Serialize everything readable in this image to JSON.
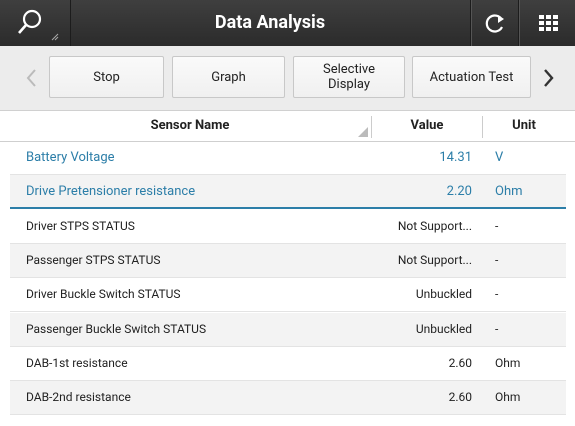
{
  "header": {
    "title": "Data Analysis"
  },
  "toolbar": {
    "buttons": [
      "Stop",
      "Graph",
      "Selective Display",
      "Actuation Test"
    ]
  },
  "table": {
    "columns": [
      "Sensor Name",
      "Value",
      "Unit"
    ],
    "rows": [
      [
        "Battery Voltage",
        "14.31",
        "V"
      ],
      [
        "Drive Pretensioner resistance",
        "2.20",
        "Ohm"
      ],
      [
        "Driver STPS STATUS",
        "Not Support...",
        "-"
      ],
      [
        "Passenger STPS STATUS",
        "Not Support...",
        "-"
      ],
      [
        "Driver Buckle Switch STATUS",
        "Unbuckled",
        "-"
      ],
      [
        "Passenger Buckle Switch STATUS",
        "Unbuckled",
        "-"
      ],
      [
        "DAB-1st resistance",
        "2.60",
        "Ohm"
      ],
      [
        "DAB-2nd resistance",
        "2.60",
        "Ohm"
      ]
    ]
  }
}
